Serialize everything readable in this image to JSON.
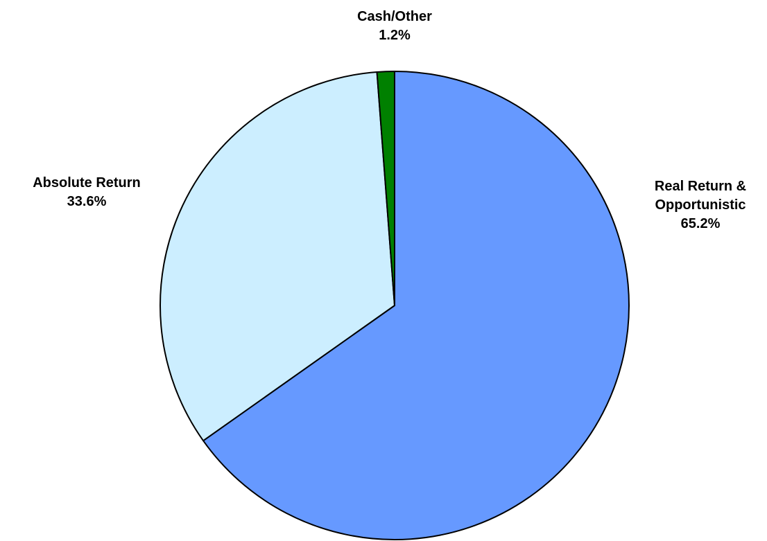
{
  "chart_data": {
    "type": "pie",
    "categories": [
      "Real Return & Opportunistic",
      "Absolute Return",
      "Cash/Other"
    ],
    "values": [
      65.2,
      33.6,
      1.2
    ],
    "value_labels": [
      "65.2%",
      "33.6%",
      "1.2%"
    ],
    "colors": [
      "#6699ff",
      "#cceeff",
      "#008000"
    ]
  }
}
